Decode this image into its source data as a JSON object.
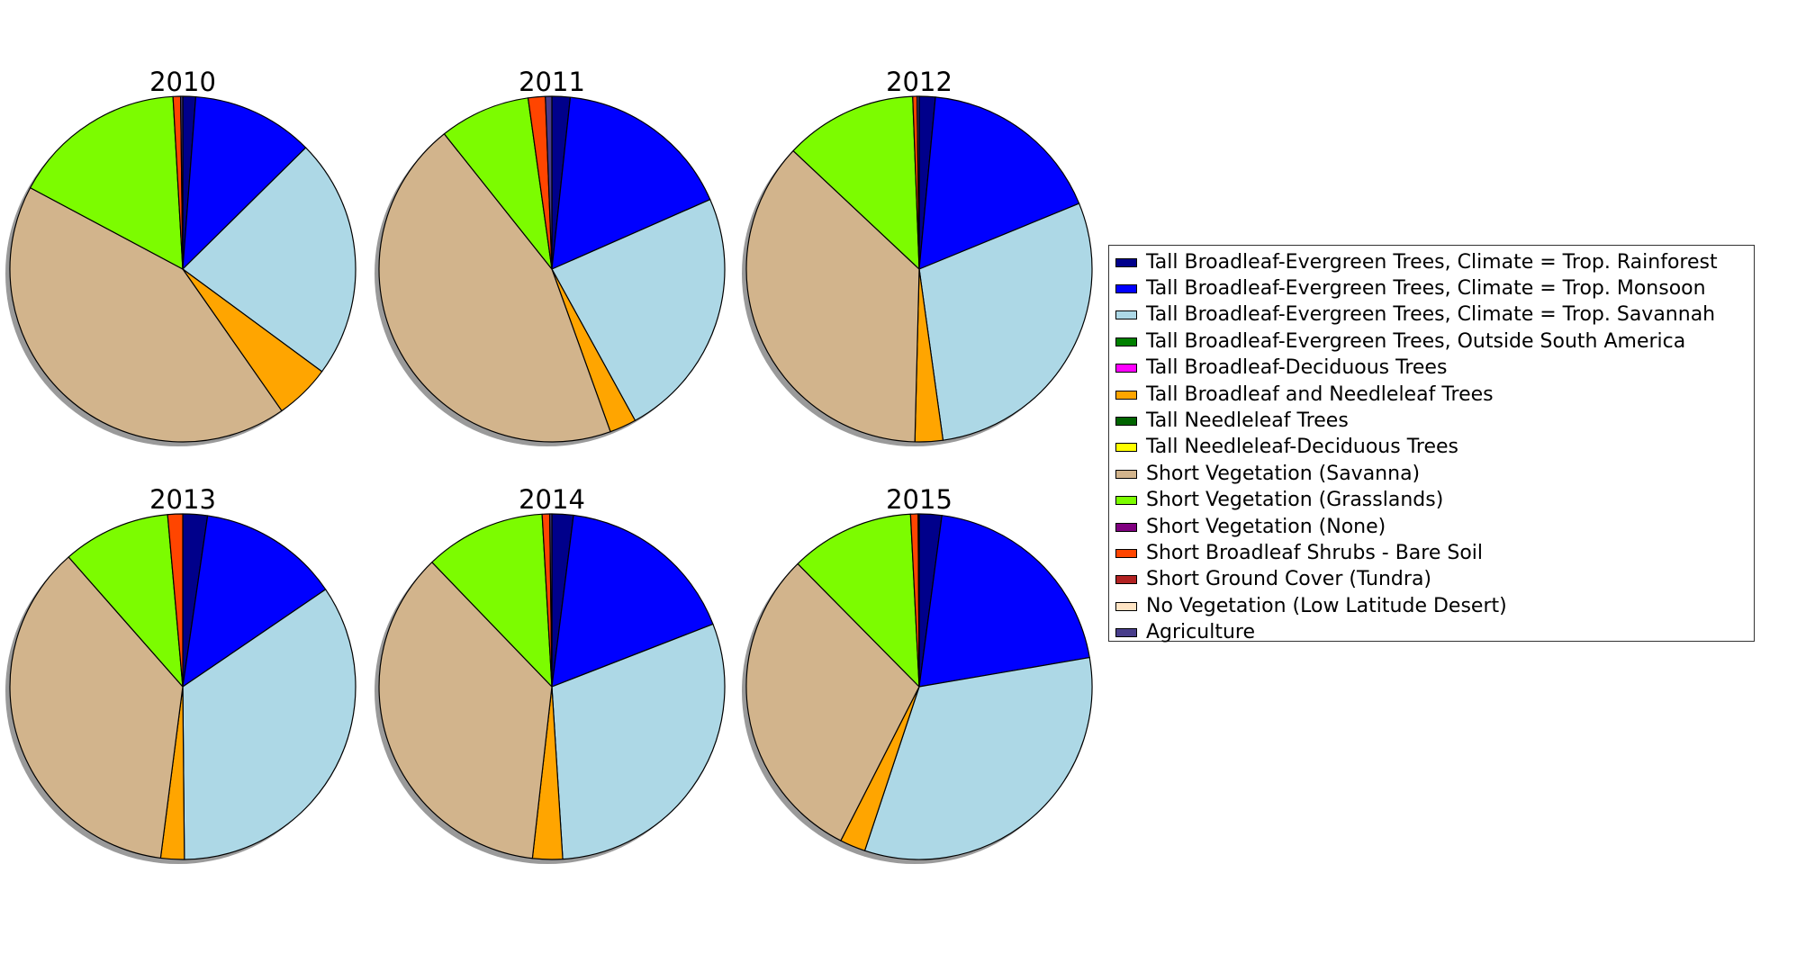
{
  "chart_data": {
    "type": "pie",
    "start_angle_deg": 90,
    "direction": "clockwise",
    "shadow": true,
    "legend_placement": "right",
    "categories": [
      "Tall Broadleaf-Evergreen Trees, Climate = Trop. Rainforest",
      "Tall Broadleaf-Evergreen Trees, Climate = Trop. Monsoon",
      "Tall Broadleaf-Evergreen Trees, Climate = Trop. Savannah",
      "Tall Broadleaf-Evergreen Trees, Outside South America",
      "Tall Broadleaf-Deciduous Trees",
      "Tall Broadleaf and Needleleaf Trees",
      "Tall Needleleaf Trees",
      "Tall Needleleaf-Deciduous Trees",
      "Short Vegetation (Savanna)",
      "Short Vegetation (Grasslands)",
      "Short Vegetation (None)",
      "Short Broadleaf Shrubs - Bare Soil",
      "Short Ground Cover (Tundra)",
      "No Vegetation (Low Latitude Desert)",
      "Agriculture"
    ],
    "colors": [
      "#00008b",
      "#0000ff",
      "#add8e6",
      "#008000",
      "#ff00ff",
      "#ffa500",
      "#006400",
      "#ffff00",
      "#d2b48c",
      "#7cfc00",
      "#800080",
      "#ff4500",
      "#b22222",
      "#ffe4c4",
      "#483d8b"
    ],
    "pies": [
      {
        "title": "2010",
        "values": [
          1.2,
          11.4,
          22.5,
          0,
          0,
          5.2,
          0,
          0,
          42.5,
          16.3,
          0,
          0.7,
          0,
          0,
          0.2
        ]
      },
      {
        "title": "2011",
        "values": [
          1.7,
          16.7,
          23.6,
          0,
          0,
          2.5,
          0,
          0,
          44.8,
          8.5,
          0,
          1.6,
          0,
          0,
          0.6
        ]
      },
      {
        "title": "2012",
        "values": [
          1.5,
          17.3,
          29.0,
          0,
          0,
          2.6,
          0,
          0,
          36.6,
          12.4,
          0,
          0.4,
          0,
          0,
          0.2
        ]
      },
      {
        "title": "2013",
        "values": [
          2.3,
          13.2,
          34.4,
          0,
          0,
          2.2,
          0,
          0,
          36.5,
          10.1,
          0,
          1.4,
          0,
          0,
          0
        ]
      },
      {
        "title": "2014",
        "values": [
          2.0,
          17.1,
          29.9,
          0,
          0,
          2.8,
          0,
          0,
          36.0,
          11.3,
          0,
          0.7,
          0,
          0,
          0.2
        ]
      },
      {
        "title": "2015",
        "values": [
          2.1,
          20.2,
          32.8,
          0,
          0,
          2.4,
          0,
          0,
          30.1,
          11.6,
          0,
          0.7,
          0,
          0,
          0.1
        ]
      }
    ]
  }
}
